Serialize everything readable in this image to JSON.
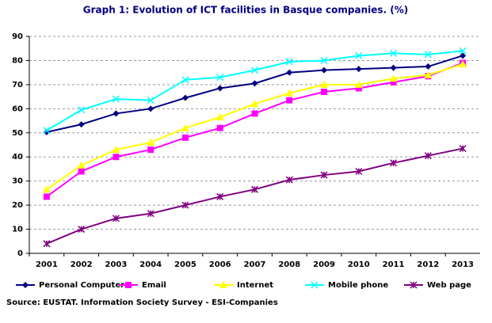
{
  "chart_data": {
    "type": "line",
    "title": "Graph 1: Evolution of ICT facilities in Basque companies. (%)",
    "source": "Source: EUSTAT. Information Society Survey - ESI-Companies",
    "categories": [
      "2001",
      "2002",
      "2003",
      "2004",
      "2005",
      "2006",
      "2007",
      "2008",
      "2009",
      "2010",
      "2011",
      "2012",
      "2013"
    ],
    "ylim": [
      0,
      90
    ],
    "yticks": [
      0,
      10,
      20,
      30,
      40,
      50,
      60,
      70,
      80,
      90
    ],
    "grid": true,
    "series": [
      {
        "name": "Personal Computer",
        "color": "#000080",
        "marker": "diamond",
        "values": [
          50.3,
          53.5,
          58,
          60,
          64.5,
          68.5,
          70.5,
          75,
          76,
          76.5,
          77,
          77.5,
          82
        ]
      },
      {
        "name": "Email",
        "color": "#ff00ff",
        "marker": "square",
        "values": [
          23.5,
          34,
          40,
          43,
          48,
          52,
          58,
          63.5,
          67,
          68.5,
          71,
          73.5,
          79
        ]
      },
      {
        "name": "Internet",
        "color": "#ffff00",
        "marker": "triangle",
        "values": [
          26.5,
          36.5,
          43,
          46,
          52,
          56.5,
          62,
          66.5,
          70,
          70,
          72.5,
          74,
          78.5
        ]
      },
      {
        "name": "Mobile phone",
        "color": "#00ffff",
        "marker": "x",
        "values": [
          51,
          59.5,
          64,
          63.5,
          72,
          73,
          76,
          79.5,
          80,
          82,
          83,
          82.5,
          84
        ]
      },
      {
        "name": "Web page",
        "color": "#800080",
        "marker": "star",
        "values": [
          4,
          10,
          14.5,
          16.5,
          20,
          23.5,
          26.5,
          30.5,
          32.5,
          34,
          37.5,
          40.5,
          43.5
        ]
      }
    ]
  }
}
